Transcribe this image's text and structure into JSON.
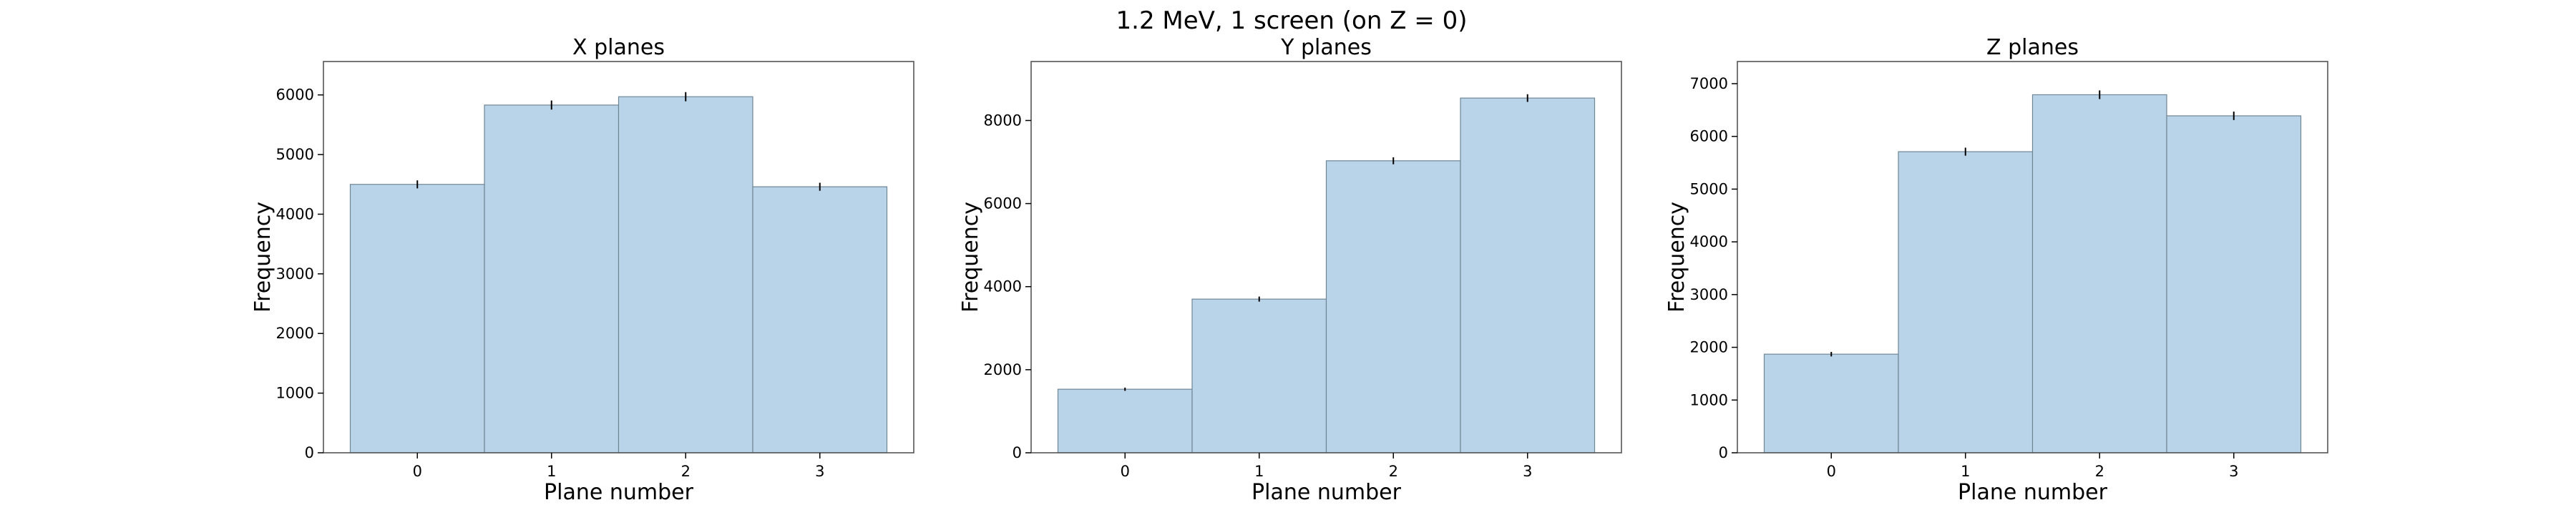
{
  "figure": {
    "suptitle": "1.2 MeV, 1 screen (on Z = 0)",
    "bar_fill": "#b9d4e8",
    "bar_edge": "#6f8696",
    "errorbar_color": "#000000"
  },
  "chart_data": [
    {
      "type": "bar",
      "title": "X planes",
      "xlabel": "Plane number",
      "ylabel": "Frequency",
      "categories": [
        "0",
        "1",
        "2",
        "3"
      ],
      "values": [
        4500,
        5830,
        5970,
        4460
      ],
      "errors": [
        67,
        76,
        77,
        67
      ],
      "ylim": [
        0,
        6560
      ],
      "yticks": [
        0,
        1000,
        2000,
        3000,
        4000,
        5000,
        6000
      ],
      "grid": false
    },
    {
      "type": "bar",
      "title": "Y planes",
      "xlabel": "Plane number",
      "ylabel": "Frequency",
      "categories": [
        "0",
        "1",
        "2",
        "3"
      ],
      "values": [
        1530,
        3700,
        7030,
        8540
      ],
      "errors": [
        39,
        61,
        84,
        92
      ],
      "ylim": [
        0,
        9420
      ],
      "yticks": [
        0,
        2000,
        4000,
        6000,
        8000
      ],
      "grid": false
    },
    {
      "type": "bar",
      "title": "Z planes",
      "xlabel": "Plane number",
      "ylabel": "Frequency",
      "categories": [
        "0",
        "1",
        "2",
        "3"
      ],
      "values": [
        1870,
        5710,
        6790,
        6390
      ],
      "errors": [
        43,
        76,
        82,
        80
      ],
      "ylim": [
        0,
        7420
      ],
      "yticks": [
        0,
        1000,
        2000,
        3000,
        4000,
        5000,
        6000,
        7000
      ],
      "grid": false
    }
  ]
}
